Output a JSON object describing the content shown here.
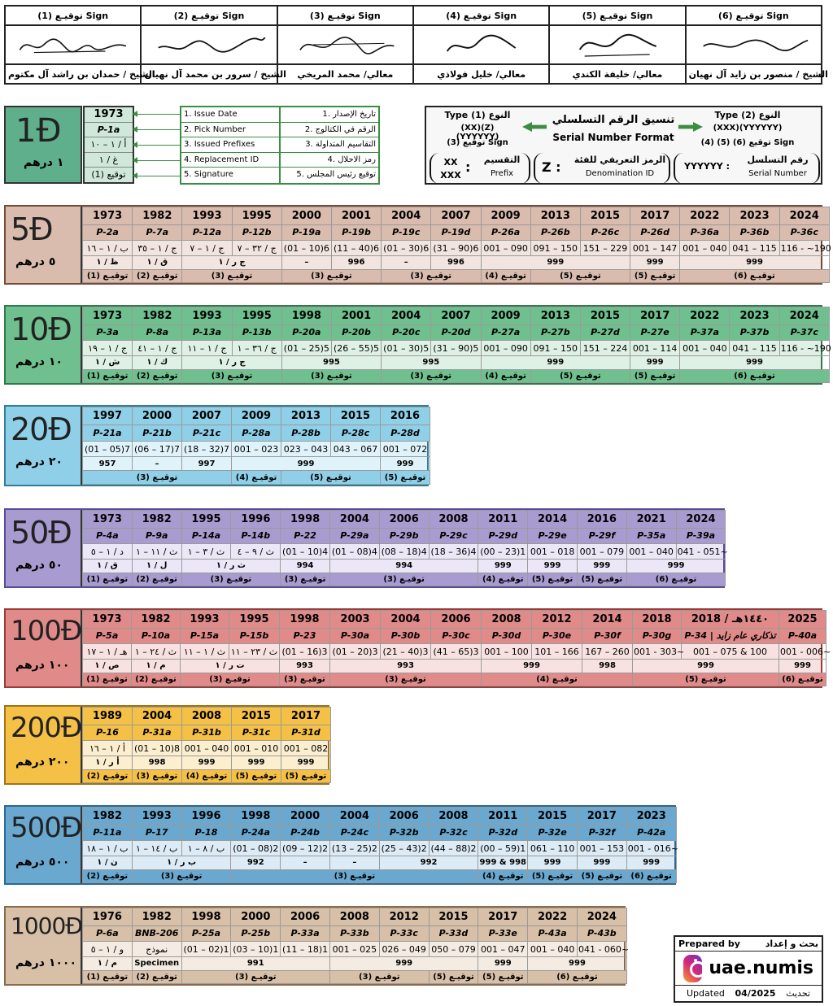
{
  "signatures": {
    "headers": [
      "توقيـع (1) Sign",
      "توقيـع (2) Sign",
      "توقيـع (3) Sign",
      "توقيـع (4) Sign",
      "توقيـع (5) Sign",
      "توقيـع (6) Sign"
    ],
    "names": [
      "الشيخ / حمدان بن راشد آل مكتوم",
      "الشيخ / سرور بن محمد آل نهيان",
      "معالي/ محمد المريخي",
      "معالي/ خليل فولاذي",
      "معالي/ خليفة الكندي",
      "الشيخ / منصور بن زايد آل نهيان"
    ]
  },
  "legend": {
    "denom": "1",
    "denom_ar": "١ درهم",
    "sample": [
      "1973",
      "P-1a",
      "أ / ١ – ١٠",
      "غ / ١",
      "توقيع (1)"
    ],
    "items": [
      {
        "en": "1. Issue Date",
        "ar": "1. تاريخ الإصدار"
      },
      {
        "en": "2. Pick Number",
        "ar": "2. الرقم في الكتالوج"
      },
      {
        "en": "3. Issued Prefixes",
        "ar": "3. التقاسيم المتداولة"
      },
      {
        "en": "4. Replacement ID",
        "ar": "4. رمز الاحلال"
      },
      {
        "en": "5. Signature",
        "ar": "5. توقيع رئيس المجلس"
      }
    ]
  },
  "format": {
    "title_ar": "تنسيق الرقم التسلسلي",
    "title_en": "Serial Number Format",
    "type1_ar": "النوع (1)",
    "type1_en": "Type",
    "type1_code": "(XX)(Z)(YYYYYY)",
    "type1_sign": "توقيع (3) Sign",
    "type2_ar": "النوع (2)",
    "type2_en": "Type",
    "type2_code": "(XXX)(YYYYYY)",
    "type2_sign": "توقيع (6) (5) (4) Sign",
    "prefix_ar": "التقسيم",
    "prefix_en": "Prefix",
    "prefix_code": "XX\nXXX",
    "den_ar": "الرمز التعريفي للفئة",
    "den_en": "Denomination ID",
    "den_code": "Z",
    "serial_ar": "رقم التسلسل",
    "serial_en": "Serial Number",
    "serial_code": "YYYYYY"
  },
  "bands": [
    {
      "denom": "5",
      "denom_ar": "٥ درهم",
      "bg": "#d9bcae",
      "dark": "#7a4a36",
      "light": "#f2e4df",
      "years": [
        "1973",
        "1982",
        "1993",
        "1995",
        "2000",
        "2001",
        "2004",
        "2007",
        "2009",
        "2013",
        "2015",
        "2017",
        "2022",
        "2023",
        "2024"
      ],
      "picks": [
        "P-2a",
        "P-7a",
        "P-12a",
        "P-12b",
        "P-19a",
        "P-19b",
        "P-19c",
        "P-19d",
        "P-26a",
        "P-26b",
        "P-26c",
        "P-26d",
        "P-36a",
        "P-36b",
        "P-36c"
      ],
      "prefixes": [
        "ب / ١ – ١٦",
        "ج / ١ – ٣٥",
        "ج / ١ – ٧",
        "ج / ٣٢ – ٧",
        "(01 – 10)6",
        "(11 – 40)6",
        "(01 – 30)6",
        "(31 – 90)6",
        "001 – 090",
        "091 – 150",
        "151 – 229",
        "001 – 147",
        "001 – 040",
        "041 – 115",
        "116 - ~190"
      ],
      "repl": [
        [
          "ظ / ١",
          1
        ],
        [
          "ق / ١",
          1
        ],
        [
          "ج ر / ١",
          2
        ],
        [
          "–",
          1
        ],
        [
          "996",
          1
        ],
        [
          "–",
          1
        ],
        [
          "996",
          1
        ],
        [
          "999",
          3
        ],
        [
          "999",
          1
        ],
        [
          "999",
          3
        ]
      ],
      "sign": [
        [
          "توقيـع (1)",
          1
        ],
        [
          "توقيـع (2)",
          1
        ],
        [
          "توقيـع (3)",
          2
        ],
        [
          "توقيـع (3)",
          2
        ],
        [
          "توقيـع (3)",
          2
        ],
        [
          "توقيـع (4)",
          1
        ],
        [
          "توقيـع (5)",
          2
        ],
        [
          "توقيـع (5)",
          1
        ],
        [
          "توقيـع (6)",
          3
        ]
      ]
    },
    {
      "denom": "10",
      "denom_ar": "١٠ درهم",
      "bg": "#6fbf8f",
      "dark": "#2e7a4c",
      "light": "#dff1e5",
      "years": [
        "1973",
        "1982",
        "1993",
        "1995",
        "1998",
        "2001",
        "2004",
        "2007",
        "2009",
        "2013",
        "2015",
        "2017",
        "2022",
        "2023",
        "2024"
      ],
      "picks": [
        "P-3a",
        "P-8a",
        "P-13a",
        "P-13b",
        "P-20a",
        "P-20b",
        "P-20c",
        "P-20d",
        "P-27a",
        "P-27b",
        "P-27d",
        "P-27e",
        "P-37a",
        "P-37b",
        "P-37c"
      ],
      "prefixes": [
        "ج / ١ – ١٩",
        "ج / ١ – ٤١",
        "ج / ١ – ١١",
        "ج / ٣٦ – ١",
        "(01 – 25)5",
        "(26 – 55)5",
        "(01 – 30)5",
        "(31 – 90)5",
        "001 – 090",
        "091 – 150",
        "151 – 224",
        "001 – 114",
        "001 – 040",
        "041 – 115",
        "116 - ~190"
      ],
      "repl": [
        [
          "ش / ١",
          1
        ],
        [
          "ك / ١",
          1
        ],
        [
          "ج ر / ١",
          2
        ],
        [
          "995",
          2
        ],
        [
          "995",
          2
        ],
        [
          "999",
          3
        ],
        [
          "999",
          1
        ],
        [
          "999",
          3
        ]
      ],
      "sign": [
        [
          "توقيـع (1)",
          1
        ],
        [
          "توقيـع (2)",
          1
        ],
        [
          "توقيـع (3)",
          2
        ],
        [
          "توقيـع (3)",
          2
        ],
        [
          "توقيـع (3)",
          2
        ],
        [
          "توقيـع (4)",
          1
        ],
        [
          "توقيـع (5)",
          2
        ],
        [
          "توقيـع (5)",
          1
        ],
        [
          "توقيـع (6)",
          3
        ]
      ]
    },
    {
      "denom": "20",
      "denom_ar": "٢٠ درهم",
      "bg": "#8fd0e8",
      "dark": "#2f7d9b",
      "light": "#e1f3fa",
      "years": [
        "1997",
        "2000",
        "2007",
        "2009",
        "2013",
        "2015",
        "2016"
      ],
      "picks": [
        "P-21a",
        "P-21b",
        "P-21c",
        "P-28a",
        "P-28b",
        "P-28c",
        "P-28d"
      ],
      "prefixes": [
        "(01 – 05)7",
        "(06 – 17)7",
        "(18 – 32)7",
        "001 – 023",
        "023 – 043",
        "043 – 067",
        "001 – 072"
      ],
      "repl": [
        [
          "957",
          1
        ],
        [
          "–",
          1
        ],
        [
          "997",
          1
        ],
        [
          "999",
          3
        ],
        [
          "999",
          1
        ]
      ],
      "sign": [
        [
          "توقيـع (3)",
          3
        ],
        [
          "توقيـع (4)",
          1
        ],
        [
          "توقيـع (5)",
          2
        ],
        [
          "توقيـع (5)",
          1
        ]
      ]
    },
    {
      "denom": "50",
      "denom_ar": "٥٠ درهم",
      "bg": "#a89bd0",
      "dark": "#5a4a9a",
      "light": "#ebe7f6",
      "years": [
        "1973",
        "1982",
        "1995",
        "1996",
        "1998",
        "2004",
        "2006",
        "2008",
        "2011",
        "2014",
        "2016",
        "2021",
        "2024"
      ],
      "picks": [
        "P-4a",
        "P-9a",
        "P-14a",
        "P-14b",
        "P-22",
        "P-29a",
        "P-29b",
        "P-29c",
        "P-29d",
        "P-29e",
        "P-29f",
        "P-35a",
        "P-39a"
      ],
      "prefixes": [
        "د / ١ – ٥",
        "ث / ١١ – ١",
        "ث / ٣ – ١",
        "ث / ٩ – ٤",
        "(01 – 10)4",
        "(01 – 08)4",
        "(08 – 18)4",
        "(18 – 36)4",
        "(00 – 23)1",
        "001 – 018",
        "001 – 079",
        "001 – 040",
        "041 - 051~"
      ],
      "repl": [
        [
          "ق / ١",
          1
        ],
        [
          "ل / ١",
          1
        ],
        [
          "ث ر / ١",
          2
        ],
        [
          "994",
          1
        ],
        [
          "994",
          3
        ],
        [
          "999",
          1
        ],
        [
          "999",
          1
        ],
        [
          "999",
          1
        ],
        [
          "999",
          2
        ]
      ],
      "sign": [
        [
          "توقيـع (1)",
          1
        ],
        [
          "توقيـع (2)",
          1
        ],
        [
          "توقيـع (3)",
          2
        ],
        [
          "توقيـع (3)",
          1
        ],
        [
          "توقيـع (3)",
          3
        ],
        [
          "توقيـع (4)",
          1
        ],
        [
          "توقيـع (5)",
          1
        ],
        [
          "توقيـع (5)",
          1
        ],
        [
          "توقيـع (6)",
          2
        ]
      ]
    },
    {
      "denom": "100",
      "denom_ar": "١٠٠ درهم",
      "bg": "#e08a8a",
      "dark": "#9a3a3a",
      "light": "#f8e1e1",
      "years": [
        "1973",
        "1982",
        "1993",
        "1995",
        "1998",
        "2003",
        "2004",
        "2006",
        "2008",
        "2012",
        "2014",
        "2018",
        "١٤٤٠هـ / 2018",
        "2025"
      ],
      "picks": [
        "P-5a",
        "P-10a",
        "P-15a",
        "P-15b",
        "P-23",
        "P-30a",
        "P-30b",
        "P-30c",
        "P-30d",
        "P-30e",
        "P-30f",
        "P-30g",
        "P-34 | تذكاري عام زايد",
        "P-40a"
      ],
      "prefixes": [
        "هـ / ١ – ١٧",
        "ث / ٢٤ – ١",
        "ث / ١ – ١١",
        "ث / ٢٣ – ١١",
        "(01 – 16)3",
        "(01 – 20)3",
        "(21 – 40)3",
        "(41 – 65)3",
        "001 – 100",
        "101 – 166",
        "167 – 260",
        "001 - 303~",
        "001 – 075 & 100",
        "001 - 006~"
      ],
      "repl": [
        [
          "ص / ١",
          1
        ],
        [
          "م / ١",
          1
        ],
        [
          "ت ر / ١",
          2
        ],
        [
          "993",
          1
        ],
        [
          "993",
          3
        ],
        [
          "999",
          2
        ],
        [
          "998",
          1
        ],
        [
          "999",
          2
        ],
        [
          "999",
          1
        ]
      ],
      "sign": [
        [
          "توقيـع (1)",
          1
        ],
        [
          "توقيـع (2)",
          1
        ],
        [
          "توقيـع (3)",
          2
        ],
        [
          "توقيـع (3)",
          1
        ],
        [
          "توقيـع (3)",
          3
        ],
        [
          "توقيـع (4)",
          3
        ],
        [
          "توقيـع (5)",
          2
        ],
        [
          "توقيـع (6)",
          1
        ]
      ]
    },
    {
      "denom": "200",
      "denom_ar": "٢٠٠ درهم",
      "bg": "#f5c046",
      "dark": "#a07516",
      "light": "#fcefd0",
      "years": [
        "1989",
        "2004",
        "2008",
        "2015",
        "2017"
      ],
      "picks": [
        "P-16",
        "P-31a",
        "P-31b",
        "P-31c",
        "P-31d"
      ],
      "prefixes": [
        "أ / ١ – ١٦",
        "(01 – 10)8",
        "001 – 040",
        "001 – 010",
        "001 – 082"
      ],
      "repl": [
        [
          "أ ر / ١",
          1
        ],
        [
          "998",
          1
        ],
        [
          "999",
          1
        ],
        [
          "999",
          1
        ],
        [
          "999",
          1
        ]
      ],
      "sign": [
        [
          "توقيـع (2)",
          1
        ],
        [
          "توقيـع (3)",
          1
        ],
        [
          "توقيـع (4)",
          1
        ],
        [
          "توقيـع (5)",
          1
        ],
        [
          "توقيـع (5)",
          1
        ]
      ]
    },
    {
      "denom": "500",
      "denom_ar": "٥٠٠ درهم",
      "bg": "#6aa8cf",
      "dark": "#2a6a95",
      "light": "#dcebf5",
      "years": [
        "1982",
        "1993",
        "1996",
        "1998",
        "2000",
        "2004",
        "2006",
        "2008",
        "2011",
        "2015",
        "2017",
        "2023"
      ],
      "picks": [
        "P-11a",
        "P-17",
        "P-18",
        "P-24a",
        "P-24b",
        "P-24c",
        "P-32b",
        "P-32c",
        "P-32d",
        "P-32e",
        "P-32f",
        "P-42a"
      ],
      "prefixes": [
        "ب / ١ – ١٨",
        "ب / ١٤ – ١",
        "ب / ٨ – ١",
        "(01 – 08)2",
        "(09 – 12)2",
        "(13 – 25)2",
        "(25 – 43)2",
        "(44 – 88)2",
        "(00 – 59)1",
        "061 – 110",
        "001 – 153",
        "001 - 016~"
      ],
      "repl": [
        [
          "ن / ١",
          1
        ],
        [
          "ب ر / ١",
          2
        ],
        [
          "992",
          1
        ],
        [
          "–",
          1
        ],
        [
          "–",
          1
        ],
        [
          "992",
          2
        ],
        [
          "999 & 998",
          1
        ],
        [
          "999",
          1
        ],
        [
          "999",
          1
        ],
        [
          "999",
          1
        ]
      ],
      "sign": [
        [
          "توقيـع (2)",
          1
        ],
        [
          "توقيـع (3)",
          2
        ],
        [
          "توقيـع (3)",
          5
        ],
        [
          "توقيـع (4)",
          1
        ],
        [
          "توقيـع (5)",
          1
        ],
        [
          "توقيـع (5)",
          1
        ],
        [
          "توقيـع (6)",
          1
        ]
      ]
    },
    {
      "denom": "1000",
      "denom_ar": "١٠٠٠ درهم",
      "bg": "#d8c0a8",
      "dark": "#8a6a48",
      "light": "#f4ece2",
      "years": [
        "1976",
        "1982",
        "1998",
        "2000",
        "2006",
        "2008",
        "2012",
        "2015",
        "2017",
        "2022",
        "2024"
      ],
      "picks": [
        "P-6a",
        "BNB-206",
        "P-25a",
        "P-25b",
        "P-33a",
        "P-33b",
        "P-33c",
        "P-33d",
        "P-33e",
        "P-43a",
        "P-43b"
      ],
      "prefixes": [
        "و / ١ – ٥",
        "نموذج",
        "(01 – 02)1",
        "(03 – 10)1",
        "(11 – 18)1",
        "001 – 025",
        "026 – 049",
        "050 – 079",
        "001 – 047",
        "001 – 040",
        "041 - 060~"
      ],
      "repl": [
        [
          "م / ١",
          1
        ],
        [
          "Specimen",
          1
        ],
        [
          "991",
          3
        ],
        [
          "999",
          3
        ],
        [
          "999",
          1
        ],
        [
          "999",
          2
        ]
      ],
      "sign": [
        [
          "توقيـع (1)",
          1
        ],
        [
          "توقيـع (2)",
          1
        ],
        [
          "توقيـع (3)",
          3
        ],
        [
          "توقيـع (3)",
          2
        ],
        [
          "توقيـع (5)",
          1
        ],
        [
          "توقيـع (5)",
          1
        ],
        [
          "توقيـع (6)",
          2
        ]
      ]
    }
  ],
  "credit": {
    "prepared_en": "Prepared by",
    "prepared_ar": "بحث و إعداد",
    "handle": "uae.numis",
    "updated_en": "Updated",
    "date": "04/2025",
    "updated_ar": "تحديث"
  }
}
